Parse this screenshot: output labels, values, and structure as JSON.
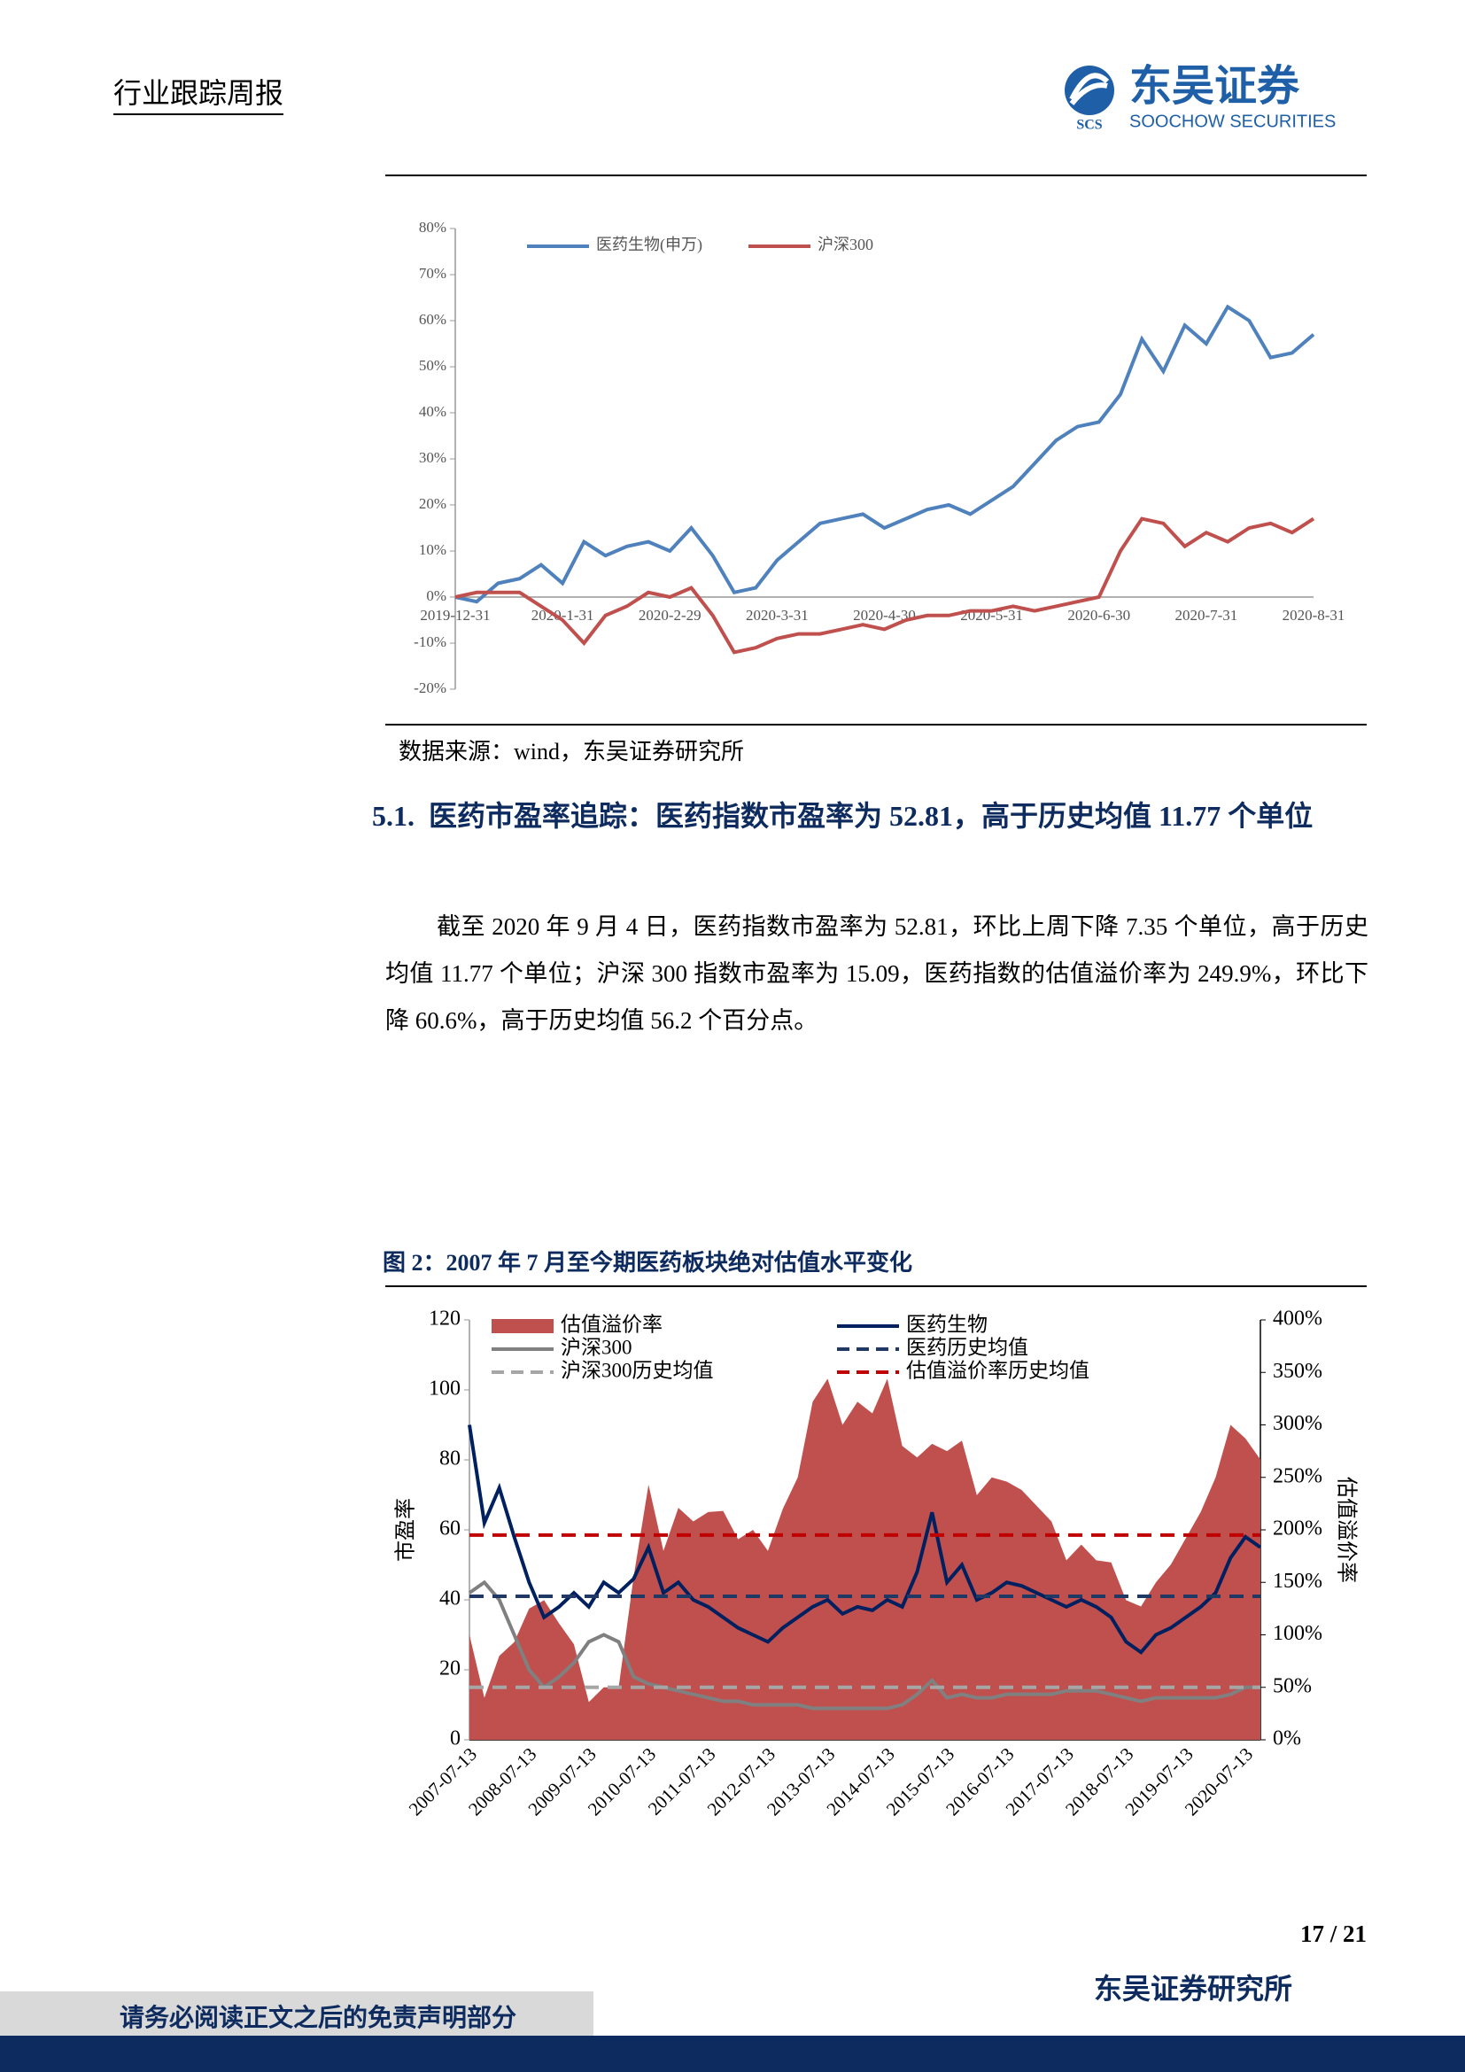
{
  "header": {
    "title": "行业跟踪周报",
    "logo_cn": "东吴证券",
    "logo_en": "SOOCHOW SECURITIES",
    "logo_mark": "SCS"
  },
  "chart_data": [
    {
      "type": "line",
      "categories": [
        "2019-12-31",
        null,
        null,
        null,
        null,
        "2020-1-31",
        null,
        null,
        null,
        null,
        "2020-2-29",
        null,
        null,
        null,
        null,
        "2020-3-31",
        null,
        null,
        null,
        null,
        "2020-4-30",
        null,
        null,
        null,
        null,
        "2020-5-31",
        null,
        null,
        null,
        null,
        "2020-6-30",
        null,
        null,
        null,
        null,
        "2020-7-31",
        null,
        null,
        null,
        null,
        "2020-8-31"
      ],
      "series": [
        {
          "name": "医药生物(申万)",
          "color": "#4f81bd",
          "values": [
            0,
            -1,
            3,
            4,
            7,
            3,
            12,
            9,
            11,
            12,
            10,
            15,
            9,
            1,
            2,
            8,
            12,
            16,
            17,
            18,
            15,
            17,
            19,
            20,
            18,
            21,
            24,
            29,
            34,
            37,
            38,
            44,
            56,
            49,
            59,
            55,
            63,
            60,
            52,
            53,
            57
          ]
        },
        {
          "name": "沪深300",
          "color": "#c0504d",
          "values": [
            0,
            1,
            1,
            1,
            -2,
            -5,
            -10,
            -4,
            -2,
            1,
            0,
            2,
            -4,
            -12,
            -11,
            -9,
            -8,
            -8,
            -7,
            -6,
            -7,
            -5,
            -4,
            -4,
            -3,
            -3,
            -2,
            -3,
            -2,
            -1,
            0,
            10,
            17,
            16,
            11,
            14,
            12,
            15,
            16,
            14,
            17
          ]
        }
      ],
      "ylim": [
        -20,
        80
      ],
      "yticks": [
        {
          "value": -20,
          "label": "-20%"
        },
        {
          "value": -10,
          "label": "-10%"
        },
        {
          "value": 0,
          "label": "0%"
        },
        {
          "value": 10,
          "label": "10%"
        },
        {
          "value": 20,
          "label": "20%"
        },
        {
          "value": 30,
          "label": "30%"
        },
        {
          "value": 40,
          "label": "40%"
        },
        {
          "value": 50,
          "label": "50%"
        },
        {
          "value": 60,
          "label": "60%"
        },
        {
          "value": 70,
          "label": "70%"
        },
        {
          "value": 80,
          "label": "80%"
        }
      ]
    },
    {
      "type": "combo",
      "title": "图 2：2007 年 7 月至今期医药板块绝对估值水平变化",
      "ylabel": "市盈率",
      "y2label": "估值溢价率",
      "categories": [
        "2007-07-13",
        null,
        null,
        null,
        "2008-07-13",
        null,
        null,
        null,
        "2009-07-13",
        null,
        null,
        null,
        "2010-07-13",
        null,
        null,
        null,
        "2011-07-13",
        null,
        null,
        null,
        "2012-07-13",
        null,
        null,
        null,
        "2013-07-13",
        null,
        null,
        null,
        "2014-07-13",
        null,
        null,
        null,
        "2015-07-13",
        null,
        null,
        null,
        "2016-07-13",
        null,
        null,
        null,
        "2017-07-13",
        null,
        null,
        null,
        "2018-07-13",
        null,
        null,
        null,
        "2019-07-13",
        null,
        null,
        null,
        "2020-07-13",
        null
      ],
      "series": [
        {
          "name": "估值溢价率",
          "type": "area",
          "axis": "y2",
          "color": "#c0504d",
          "values": [
            100,
            40,
            80,
            93,
            125,
            133,
            111,
            91,
            36,
            50,
            50,
            155,
            243,
            180,
            221,
            208,
            217,
            218,
            191,
            200,
            180,
            220,
            250,
            322,
            344,
            300,
            322,
            311,
            344,
            280,
            269,
            282,
            275,
            285,
            233,
            250,
            246,
            238,
            223,
            208,
            171,
            186,
            171,
            169,
            133,
            127,
            150,
            167,
            192,
            217,
            250,
            300,
            287,
            267
          ]
        },
        {
          "name": "医药生物",
          "type": "line",
          "color": "#002060",
          "values": [
            90,
            62,
            72,
            58,
            45,
            35,
            38,
            42,
            38,
            45,
            42,
            46,
            55,
            42,
            45,
            40,
            38,
            35,
            32,
            30,
            28,
            32,
            35,
            38,
            40,
            36,
            38,
            37,
            40,
            38,
            48,
            65,
            45,
            50,
            40,
            42,
            45,
            44,
            42,
            40,
            38,
            40,
            38,
            35,
            28,
            25,
            30,
            32,
            35,
            38,
            42,
            52,
            58,
            55
          ]
        },
        {
          "name": "沪深300",
          "type": "line",
          "color": "#808080",
          "values": [
            42,
            45,
            40,
            30,
            20,
            15,
            18,
            22,
            28,
            30,
            28,
            18,
            16,
            15,
            14,
            13,
            12,
            11,
            11,
            10,
            10,
            10,
            10,
            9,
            9,
            9,
            9,
            9,
            9,
            10,
            13,
            17,
            12,
            13,
            12,
            12,
            13,
            13,
            13,
            13,
            14,
            14,
            14,
            13,
            12,
            11,
            12,
            12,
            12,
            12,
            12,
            13,
            15,
            15
          ]
        },
        {
          "name": "医药历史均值",
          "type": "hline",
          "color": "#1f3864",
          "value": 41
        },
        {
          "name": "沪深300历史均值",
          "type": "hline",
          "color": "#a6a6a6",
          "value": 15
        },
        {
          "name": "估值溢价率历史均值",
          "type": "hline",
          "axis": "y2",
          "color": "#c00000",
          "value": 195
        }
      ],
      "ylim": [
        0,
        120
      ],
      "yticks": [
        0,
        20,
        40,
        60,
        80,
        100,
        120
      ],
      "y2lim": [
        0,
        400
      ],
      "y2ticks": [
        {
          "value": 0,
          "label": "0%"
        },
        {
          "value": 50,
          "label": "50%"
        },
        {
          "value": 100,
          "label": "100%"
        },
        {
          "value": 150,
          "label": "150%"
        },
        {
          "value": 200,
          "label": "200%"
        },
        {
          "value": 250,
          "label": "250%"
        },
        {
          "value": 300,
          "label": "300%"
        },
        {
          "value": 350,
          "label": "350%"
        },
        {
          "value": 400,
          "label": "400%"
        }
      ]
    }
  ],
  "source": "数据来源：wind，东吴证券研究所",
  "section": {
    "number": "5.1.",
    "title": "医药市盈率追踪：医药指数市盈率为 52.81，高于历史均值 11.77 个单位"
  },
  "paragraph": "截至 2020 年 9 月 4 日，医药指数市盈率为 52.81，环比上周下降 7.35 个单位，高于历史均值 11.77 个单位；沪深 300 指数市盈率为 15.09，医药指数的估值溢价率为 249.9%，环比下降 60.6%，高于历史均值 56.2 个百分点。",
  "page_number": "17 / 21",
  "footer": {
    "org": "东吴证券研究所",
    "disclaimer": "请务必阅读正文之后的免责声明部分"
  }
}
